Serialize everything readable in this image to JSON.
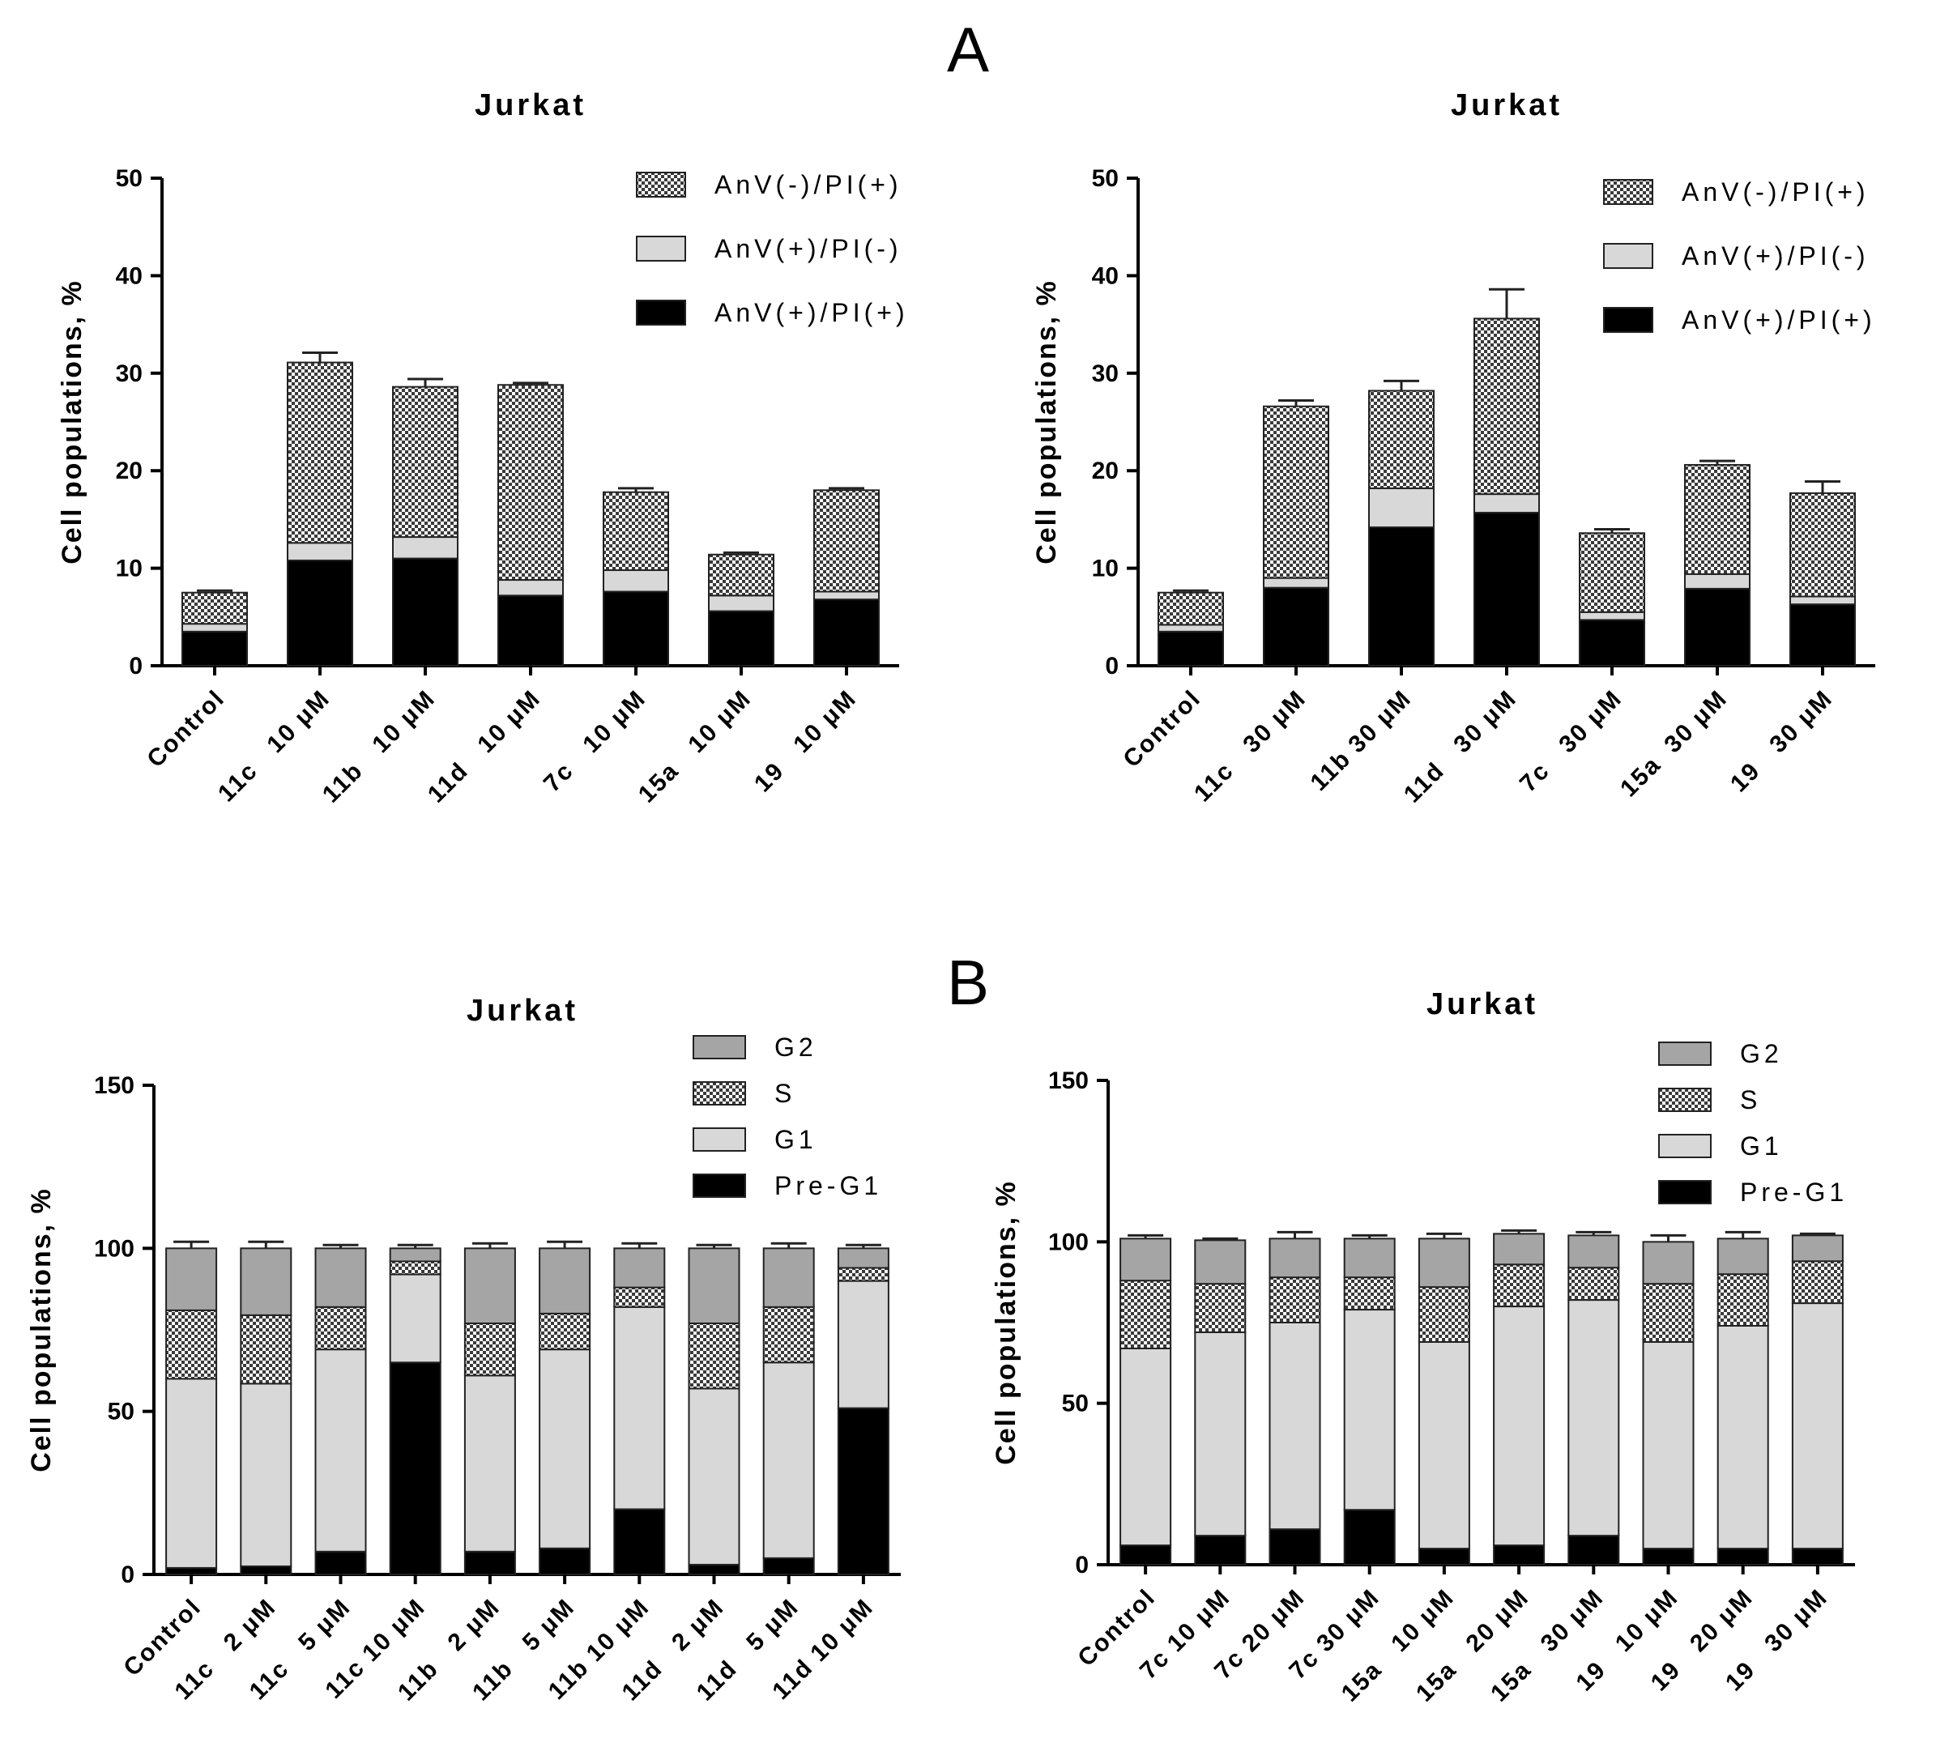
{
  "panel_labels": [
    "A",
    "B"
  ],
  "colors": {
    "late": "#000000",
    "early": "#d8d8d8",
    "necrotic": "checker",
    "preg1": "#000000",
    "g1": "#d8d8d8",
    "s": "checker",
    "g2": "#a5a5a5",
    "axis": "#000000"
  },
  "chart_data": [
    {
      "id": "A1",
      "type": "bar",
      "stacked": true,
      "title": "Jurkat",
      "ylabel": "Cell populations, %",
      "xlabel": "",
      "ylim": [
        0,
        50
      ],
      "yticks": [
        0,
        10,
        20,
        30,
        40,
        50
      ],
      "legend_position": "top-right",
      "categories": [
        "Control",
        "11c   10 μM",
        "11b   10 μM",
        "11d   10 μM",
        "7c   10 μM",
        "15a   10 μM",
        "19   10 μM"
      ],
      "series": [
        {
          "name": "AnV(+)/PI(+)",
          "color": "#000000",
          "values": [
            3.5,
            10.8,
            11.0,
            7.2,
            7.6,
            5.6,
            6.8
          ]
        },
        {
          "name": "AnV(+)/PI(-)",
          "color": "#d8d8d8",
          "values": [
            0.8,
            1.8,
            2.2,
            1.6,
            2.2,
            1.6,
            0.8
          ]
        },
        {
          "name": "AnV(-)/PI(+)",
          "color": "checker",
          "values": [
            3.2,
            18.5,
            15.4,
            20.0,
            8.0,
            4.2,
            10.4
          ]
        }
      ],
      "errors": [
        0.2,
        1.0,
        0.8,
        0.2,
        0.4,
        0.2,
        0.2
      ],
      "legend": [
        "AnV(-)/PI(+)",
        "AnV(+)/PI(-)",
        "AnV(+)/PI(+)"
      ]
    },
    {
      "id": "A2",
      "type": "bar",
      "stacked": true,
      "title": "Jurkat",
      "ylabel": "Cell populations, %",
      "xlabel": "",
      "ylim": [
        0,
        50
      ],
      "yticks": [
        0,
        10,
        20,
        30,
        40,
        50
      ],
      "legend_position": "top-right",
      "categories": [
        "Control",
        "11c   30 μM",
        "11b 30 μM",
        "11d   30 μM",
        "7c   30 μM",
        "15a  30 μM",
        "19   30 μM"
      ],
      "series": [
        {
          "name": "AnV(+)/PI(+)",
          "color": "#000000",
          "values": [
            3.5,
            8.0,
            14.2,
            15.7,
            4.7,
            7.9,
            6.3
          ]
        },
        {
          "name": "AnV(+)/PI(-)",
          "color": "#d8d8d8",
          "values": [
            0.7,
            1.0,
            4.0,
            1.9,
            0.8,
            1.5,
            0.8
          ]
        },
        {
          "name": "AnV(-)/PI(+)",
          "color": "checker",
          "values": [
            3.3,
            17.6,
            10.0,
            18.0,
            8.1,
            11.2,
            10.6
          ]
        }
      ],
      "errors": [
        0.2,
        0.6,
        1.0,
        3.0,
        0.4,
        0.4,
        1.2
      ],
      "legend": [
        "AnV(-)/PI(+)",
        "AnV(+)/PI(-)",
        "AnV(+)/PI(+)"
      ]
    },
    {
      "id": "B1",
      "type": "bar",
      "stacked": true,
      "title": "Jurkat",
      "ylabel": "Cell populations, %",
      "xlabel": "",
      "ylim": [
        0,
        150
      ],
      "yticks": [
        0,
        50,
        100,
        150
      ],
      "legend_position": "top-right",
      "categories": [
        "Control",
        "11c   2 μM",
        "11c   5 μM",
        "11c 10 μM",
        "11b   2 μM",
        "11b   5 μM",
        "11b 10 μM",
        "11d   2 μM",
        "11d   5 μM",
        "11d 10 μM"
      ],
      "series": [
        {
          "name": "Pre-G1",
          "color": "#000000",
          "values": [
            2,
            2.5,
            7,
            65,
            7,
            8,
            20,
            3,
            5,
            51
          ]
        },
        {
          "name": "G1",
          "color": "#d8d8d8",
          "values": [
            58,
            56,
            62,
            27,
            54,
            61,
            62,
            54,
            60,
            39
          ]
        },
        {
          "name": "S",
          "color": "checker",
          "values": [
            21,
            21,
            13,
            4,
            16,
            11,
            6,
            20,
            17,
            4
          ]
        },
        {
          "name": "G2",
          "color": "#a5a5a5",
          "values": [
            19,
            20.5,
            18,
            4,
            23,
            20,
            12,
            23,
            18,
            6
          ]
        }
      ],
      "errors": [
        2,
        2,
        1,
        1,
        1.5,
        2,
        1.5,
        1,
        1.5,
        1
      ],
      "legend": [
        "G2",
        "S",
        "G1",
        "Pre-G1"
      ]
    },
    {
      "id": "B2",
      "type": "bar",
      "stacked": true,
      "title": "Jurkat",
      "ylabel": "Cell populations, %",
      "xlabel": "",
      "ylim": [
        0,
        150
      ],
      "yticks": [
        0,
        50,
        100,
        150
      ],
      "legend_position": "top-right",
      "categories": [
        "Control",
        "7c 10 μM",
        "7c 20 μM",
        "7c 30 μM",
        "15a   10 μM",
        "15a   20 μM",
        "15a   30 μM",
        "19   10 μM",
        "19   20 μM",
        "19   30 μM"
      ],
      "series": [
        {
          "name": "Pre-G1",
          "color": "#000000",
          "values": [
            6,
            9,
            11,
            17,
            5,
            6,
            9,
            5,
            5,
            5
          ]
        },
        {
          "name": "G1",
          "color": "#d8d8d8",
          "values": [
            61,
            63,
            64,
            62,
            64,
            74,
            73,
            64,
            69,
            76
          ]
        },
        {
          "name": "S",
          "color": "checker",
          "values": [
            21,
            15,
            14,
            10,
            17,
            13,
            10,
            18,
            16,
            13
          ]
        },
        {
          "name": "G2",
          "color": "#a5a5a5",
          "values": [
            13,
            13.5,
            12,
            12,
            15,
            9.5,
            10,
            13,
            11,
            8
          ]
        }
      ],
      "errors": [
        1,
        0.5,
        2,
        1,
        1.5,
        1,
        1,
        2,
        2,
        0.5
      ],
      "legend": [
        "G2",
        "S",
        "G1",
        "Pre-G1"
      ]
    }
  ]
}
